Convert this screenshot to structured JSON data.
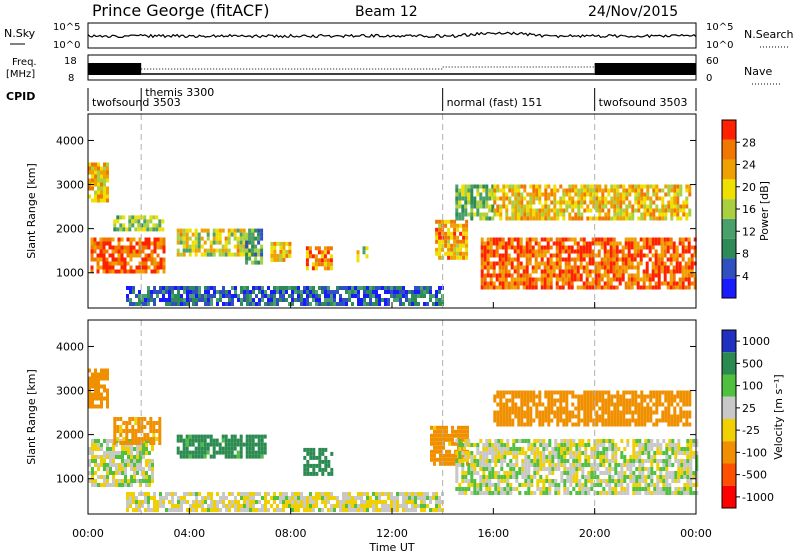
{
  "header": {
    "station": "Prince George (fitACF)",
    "beam": "Beam 12",
    "date": "24/Nov/2015"
  },
  "strip_labels": {
    "nsky": "N.Sky",
    "nsky_ticks": [
      "10^5",
      "10^0"
    ],
    "freq_line1": "Freq.",
    "freq_line2": "[MHz]",
    "freq_ticks": [
      "18",
      "8"
    ],
    "nave_ticks": [
      "60",
      "0"
    ],
    "nsearch": "N.Search",
    "nave": "Nave",
    "cpid": "CPID"
  },
  "cpid_segments": [
    {
      "name": "twofsound 3503",
      "start": 0,
      "end": 2.1
    },
    {
      "name": "themis 3300",
      "start": 2.1,
      "end": 14.0
    },
    {
      "name": "normal (fast) 151",
      "start": 14.0,
      "end": 20.0
    },
    {
      "name": "twofsound 3503",
      "start": 20.0,
      "end": 24.0
    }
  ],
  "x_axis": {
    "label": "Time UT",
    "tick_labels": [
      "00:00",
      "04:00",
      "08:00",
      "12:00",
      "16:00",
      "20:00",
      "00:00"
    ]
  },
  "power_panel": {
    "ylabel": "Slant Range [km]",
    "yticks": [
      "1000",
      "2000",
      "3000",
      "4000"
    ],
    "colorbar_label": "Power [dB]",
    "colorbar_ticks": [
      "4",
      "8",
      "12",
      "16",
      "20",
      "24",
      "28"
    ],
    "colors": [
      "#1a1aff",
      "#3050c0",
      "#2e8b57",
      "#4aa06a",
      "#a8d040",
      "#f0e000",
      "#f0a000",
      "#f07800",
      "#ff2000"
    ]
  },
  "velocity_panel": {
    "ylabel": "Slant Range [km]",
    "yticks": [
      "1000",
      "2000",
      "3000",
      "4000"
    ],
    "colorbar_label": "Velocity [m s⁻¹]",
    "colorbar_ticks": [
      "1000",
      "500",
      "100",
      "25",
      "-25",
      "-100",
      "-500",
      "-1000"
    ],
    "colors": [
      "#2030c0",
      "#2a8a50",
      "#50c040",
      "#c8c8c8",
      "#f0d000",
      "#f09000",
      "#ff5000",
      "#ff0000"
    ]
  },
  "chart_data": {
    "type": "heatmap",
    "title": "Prince George (fitACF)",
    "xlabel": "Time UT",
    "xlim": [
      0,
      24
    ],
    "ylim": [
      200,
      4600
    ],
    "panels": [
      {
        "name": "Power",
        "unit": "dB",
        "ylabel": "Slant Range [km]",
        "zlim": [
          0,
          30
        ],
        "regions": [
          {
            "t": [
              0.0,
              0.8
            ],
            "r": [
              2600,
              3500
            ],
            "value": 20
          },
          {
            "t": [
              0.1,
              3.0
            ],
            "r": [
              1000,
              1800
            ],
            "value": 26
          },
          {
            "t": [
              1.0,
              3.0
            ],
            "r": [
              2000,
              2300
            ],
            "value": 14
          },
          {
            "t": [
              3.5,
              6.5
            ],
            "r": [
              1400,
              2000
            ],
            "value": 18
          },
          {
            "t": [
              6.2,
              6.9
            ],
            "r": [
              1200,
              2000
            ],
            "value": 10
          },
          {
            "t": [
              7.2,
              8.0
            ],
            "r": [
              1300,
              1700
            ],
            "value": 20
          },
          {
            "t": [
              8.6,
              9.6
            ],
            "r": [
              1100,
              1600
            ],
            "value": 24
          },
          {
            "t": [
              10.6,
              11.0
            ],
            "r": [
              1300,
              1600
            ],
            "value": 16
          },
          {
            "t": [
              1.5,
              14.0
            ],
            "r": [
              300,
              700
            ],
            "value": 6
          },
          {
            "t": [
              13.7,
              15.0
            ],
            "r": [
              1300,
              2200
            ],
            "value": 22
          },
          {
            "t": [
              14.5,
              16.0
            ],
            "r": [
              2200,
              3000
            ],
            "value": 12
          },
          {
            "t": [
              15.5,
              24.0
            ],
            "r": [
              700,
              1800
            ],
            "value": 26
          },
          {
            "t": [
              16.0,
              23.7
            ],
            "r": [
              2200,
              3000
            ],
            "value": 20
          }
        ]
      },
      {
        "name": "Velocity",
        "unit": "m s-1",
        "ylabel": "Slant Range [km]",
        "zlim": [
          -1000,
          1000
        ],
        "regions": [
          {
            "t": [
              0.0,
              0.8
            ],
            "r": [
              2600,
              3500
            ],
            "value": -200
          },
          {
            "t": [
              0.0,
              2.5
            ],
            "r": [
              900,
              1900
            ],
            "value": 0
          },
          {
            "t": [
              1.0,
              2.8
            ],
            "r": [
              1800,
              2400
            ],
            "value": -150
          },
          {
            "t": [
              3.5,
              7.0
            ],
            "r": [
              1500,
              2000
            ],
            "value": 150
          },
          {
            "t": [
              8.5,
              9.6
            ],
            "r": [
              1100,
              1700
            ],
            "value": 400
          },
          {
            "t": [
              1.5,
              14.0
            ],
            "r": [
              300,
              700
            ],
            "value": -20
          },
          {
            "t": [
              13.5,
              15.0
            ],
            "r": [
              1300,
              2200
            ],
            "value": -150
          },
          {
            "t": [
              14.5,
              24.0
            ],
            "r": [
              700,
              1900
            ],
            "value": 0
          },
          {
            "t": [
              16.0,
              23.7
            ],
            "r": [
              2200,
              3000
            ],
            "value": -200
          }
        ]
      }
    ],
    "nsky_range": [
      "10^0",
      "10^5"
    ],
    "freq_range_mhz": [
      8,
      18
    ],
    "nave_range": [
      0,
      60
    ]
  }
}
